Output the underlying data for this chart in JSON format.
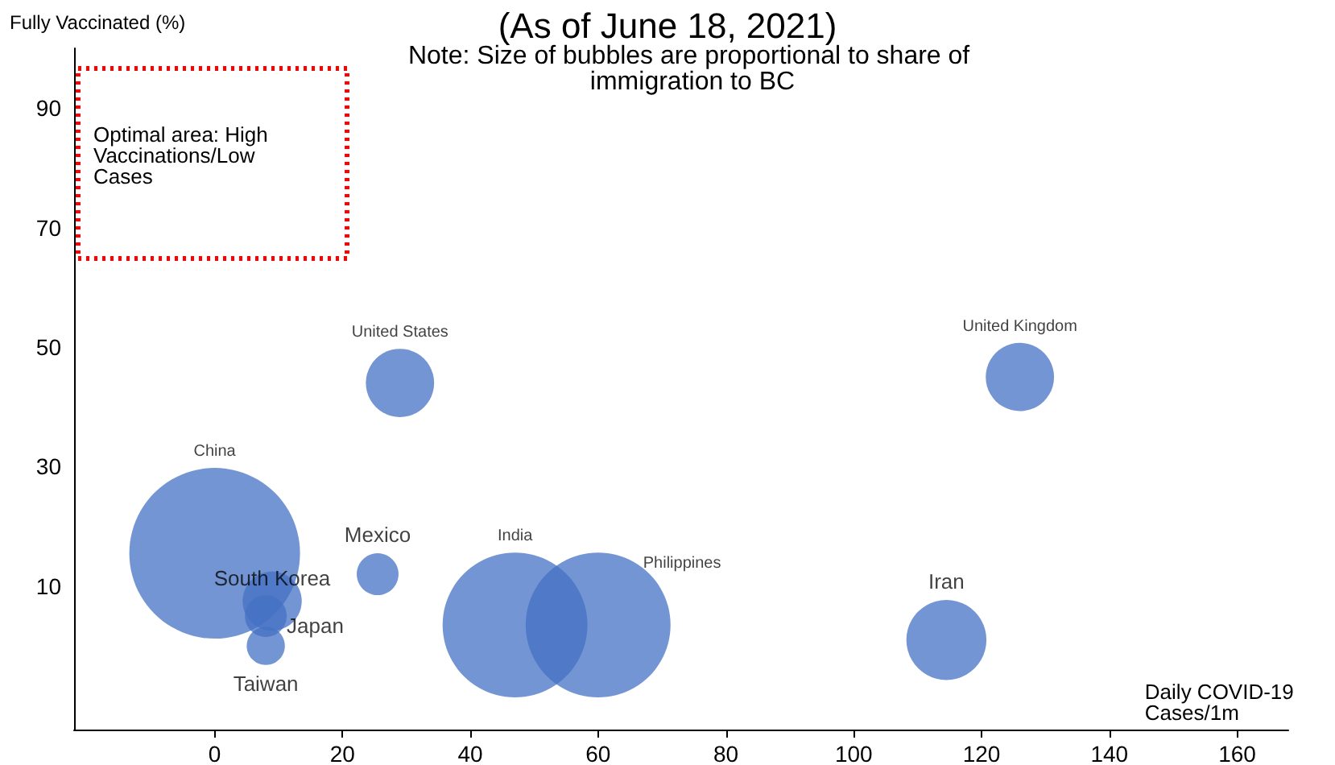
{
  "chart_data": {
    "type": "bubble",
    "title": "(As of June 18, 2021)",
    "subtitle": "Note: Size of bubbles are proportional to share of immigration to BC",
    "xlabel": "Daily COVID-19 Cases/1m",
    "ylabel": "Fully Vaccinated (%)",
    "annotations": [
      "Optimal area: High Vaccinations/Low Cases"
    ],
    "xlim": [
      -22,
      168
    ],
    "xticks": [
      0,
      20,
      40,
      60,
      80,
      100,
      120,
      140,
      160
    ],
    "ylim": [
      -14,
      100
    ],
    "yticks": [
      10,
      30,
      50,
      70,
      90
    ],
    "grid": false,
    "legend": false,
    "series": [
      {
        "name": "China",
        "color": "#4472c4",
        "x": [
          0
        ],
        "values": [
          15.5
        ],
        "sizes": [
          1
        ]
      },
      {
        "name": "United States",
        "color": "#4472c4",
        "x": [
          29
        ],
        "values": [
          44
        ],
        "sizes": [
          0.16
        ]
      },
      {
        "name": "United Kingdom",
        "color": "#4472c4",
        "x": [
          126
        ],
        "values": [
          45
        ],
        "sizes": [
          0.16
        ]
      },
      {
        "name": "Mexico",
        "color": "#4472c4",
        "x": [
          25.5
        ],
        "values": [
          12
        ],
        "sizes": [
          0.06
        ]
      },
      {
        "name": "South Korea",
        "color": "#4472c4",
        "x": [
          9
        ],
        "values": [
          7.5
        ],
        "sizes": [
          0.12
        ]
      },
      {
        "name": "Japan",
        "color": "#4472c4",
        "x": [
          8
        ],
        "values": [
          5
        ],
        "sizes": [
          0.06
        ]
      },
      {
        "name": "Taiwan",
        "color": "#4472c4",
        "x": [
          8
        ],
        "values": [
          0
        ],
        "sizes": [
          0.05
        ]
      },
      {
        "name": "India",
        "color": "#4472c4",
        "x": [
          47
        ],
        "values": [
          3.5
        ],
        "sizes": [
          0.72
        ]
      },
      {
        "name": "Philippines",
        "color": "#4472c4",
        "x": [
          60
        ],
        "values": [
          3.5
        ],
        "sizes": [
          0.72
        ]
      },
      {
        "name": "Iran",
        "color": "#4472c4",
        "x": [
          114.5
        ],
        "values": [
          1
        ],
        "sizes": [
          0.22
        ]
      }
    ]
  }
}
